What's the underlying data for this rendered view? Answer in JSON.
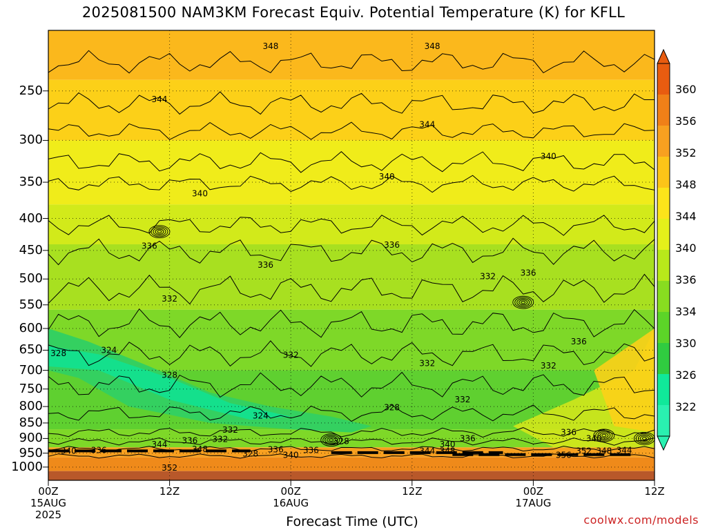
{
  "title": "2025081500 NAM3KM Forecast Equiv. Potential Temperature (K) for KFLL",
  "credit": "coolwx.com/models",
  "chart_data": {
    "type": "heatmap",
    "title": "2025081500 NAM3KM Forecast Equiv. Potential Temperature (K) for KFLL",
    "xlabel": "Forecast Time (UTC)",
    "ylabel": "",
    "y_scale": "log-pressure",
    "ylim": [
      1050,
      200
    ],
    "xlim": [
      0,
      60
    ],
    "grid": true,
    "y_ticks": [
      "250",
      "300",
      "350",
      "400",
      "450",
      "500",
      "550",
      "600",
      "650",
      "700",
      "750",
      "800",
      "850",
      "900",
      "950",
      "1000"
    ],
    "x_ticks": [
      {
        "line1": "00Z",
        "line2": "15AUG",
        "line3": "2025"
      },
      {
        "line1": "12Z",
        "line2": "",
        "line3": ""
      },
      {
        "line1": "00Z",
        "line2": "16AUG",
        "line3": ""
      },
      {
        "line1": "12Z",
        "line2": "",
        "line3": ""
      },
      {
        "line1": "00Z",
        "line2": "17AUG",
        "line3": ""
      },
      {
        "line1": "12Z",
        "line2": "",
        "line3": ""
      }
    ],
    "colorbar": {
      "labels": [
        "360",
        "356",
        "352",
        "348",
        "344",
        "340",
        "336",
        "334",
        "330",
        "326",
        "322"
      ],
      "colors": [
        "#e85c10",
        "#f08018",
        "#f8a020",
        "#fcc418",
        "#fce41a",
        "#e4f01a",
        "#b8e81a",
        "#88dc20",
        "#5cd428",
        "#30cc40",
        "#10e89a",
        "#2af0b0"
      ]
    },
    "contour_labels": [
      {
        "text": "348",
        "x": 22.0,
        "p": 212
      },
      {
        "text": "348",
        "x": 38.0,
        "p": 212
      },
      {
        "text": "344",
        "x": 11.0,
        "p": 258
      },
      {
        "text": "344",
        "x": 37.5,
        "p": 283
      },
      {
        "text": "340",
        "x": 49.5,
        "p": 318
      },
      {
        "text": "340",
        "x": 33.5,
        "p": 343
      },
      {
        "text": "340",
        "x": 15.0,
        "p": 365
      },
      {
        "text": "336",
        "x": 10.0,
        "p": 443
      },
      {
        "text": "336",
        "x": 34.0,
        "p": 441
      },
      {
        "text": "336",
        "x": 21.5,
        "p": 475
      },
      {
        "text": "336",
        "x": 47.5,
        "p": 489
      },
      {
        "text": "332",
        "x": 43.5,
        "p": 495
      },
      {
        "text": "332",
        "x": 12.0,
        "p": 538
      },
      {
        "text": "336",
        "x": 52.5,
        "p": 630
      },
      {
        "text": "328",
        "x": 1.0,
        "p": 658
      },
      {
        "text": "324",
        "x": 6.0,
        "p": 650
      },
      {
        "text": "332",
        "x": 24.0,
        "p": 662
      },
      {
        "text": "332",
        "x": 37.5,
        "p": 682
      },
      {
        "text": "328",
        "x": 12.0,
        "p": 712
      },
      {
        "text": "332",
        "x": 49.5,
        "p": 688
      },
      {
        "text": "332",
        "x": 41.0,
        "p": 780
      },
      {
        "text": "328",
        "x": 34.0,
        "p": 803
      },
      {
        "text": "324",
        "x": 21.0,
        "p": 828
      },
      {
        "text": "332",
        "x": 18.0,
        "p": 872
      },
      {
        "text": "336",
        "x": 51.5,
        "p": 880
      },
      {
        "text": "336",
        "x": 41.5,
        "p": 900
      },
      {
        "text": "340",
        "x": 54.0,
        "p": 900
      },
      {
        "text": "336",
        "x": 14.0,
        "p": 907
      },
      {
        "text": "332",
        "x": 17.0,
        "p": 903
      },
      {
        "text": "328",
        "x": 29.0,
        "p": 910
      },
      {
        "text": "344",
        "x": 11.0,
        "p": 920
      },
      {
        "text": "348",
        "x": 15.0,
        "p": 936
      },
      {
        "text": "336",
        "x": 22.5,
        "p": 938
      },
      {
        "text": "336",
        "x": 26.0,
        "p": 940
      },
      {
        "text": "340",
        "x": 39.5,
        "p": 920
      },
      {
        "text": "344",
        "x": 37.5,
        "p": 942
      },
      {
        "text": "348",
        "x": 39.5,
        "p": 942
      },
      {
        "text": "352",
        "x": 53.0,
        "p": 942
      },
      {
        "text": "348",
        "x": 55.0,
        "p": 942
      },
      {
        "text": "344",
        "x": 57.0,
        "p": 940
      },
      {
        "text": "340",
        "x": 2.0,
        "p": 943
      },
      {
        "text": "336",
        "x": 5.0,
        "p": 940
      },
      {
        "text": "328",
        "x": 20.0,
        "p": 952
      },
      {
        "text": "340",
        "x": 24.0,
        "p": 957
      },
      {
        "text": "356",
        "x": 51.0,
        "p": 957
      },
      {
        "text": "352",
        "x": 12.0,
        "p": 1003
      }
    ]
  }
}
